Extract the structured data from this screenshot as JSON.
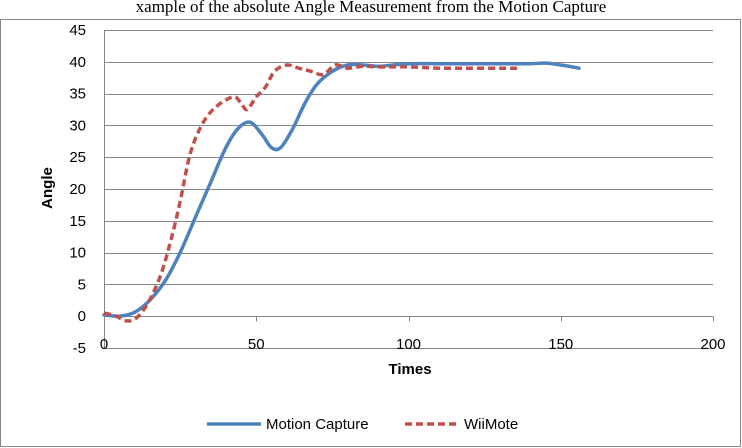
{
  "caption": "xample of the absolute Angle Measurement from the Motion Capture",
  "chart_data": {
    "type": "line",
    "title": "",
    "xlabel": "Times",
    "ylabel": "Angle",
    "xlim": [
      0,
      200
    ],
    "ylim": [
      -5,
      45
    ],
    "x_ticks": [
      0,
      50,
      100,
      150,
      200
    ],
    "y_ticks": [
      -5,
      0,
      5,
      10,
      15,
      20,
      25,
      30,
      35,
      40,
      45
    ],
    "grid": "horizontal",
    "legend_position": "bottom",
    "series": [
      {
        "name": "Motion Capture",
        "color": "#4F81BD",
        "style": "solid",
        "points": [
          [
            0,
            0.2
          ],
          [
            5,
            0
          ],
          [
            10,
            0.6
          ],
          [
            15,
            2.5
          ],
          [
            20,
            5.5
          ],
          [
            25,
            10
          ],
          [
            30,
            15.5
          ],
          [
            35,
            21
          ],
          [
            40,
            26.5
          ],
          [
            44,
            29.5
          ],
          [
            48,
            30.5
          ],
          [
            52,
            28.5
          ],
          [
            55,
            26.5
          ],
          [
            58,
            26.5
          ],
          [
            62,
            29.5
          ],
          [
            66,
            33.5
          ],
          [
            70,
            36.5
          ],
          [
            75,
            38.5
          ],
          [
            80,
            39.5
          ],
          [
            85,
            39.5
          ],
          [
            90,
            39.3
          ],
          [
            95,
            39.5
          ],
          [
            100,
            39.7
          ],
          [
            110,
            39.7
          ],
          [
            120,
            39.7
          ],
          [
            130,
            39.7
          ],
          [
            140,
            39.7
          ],
          [
            145,
            39.8
          ],
          [
            150,
            39.5
          ],
          [
            156,
            39
          ]
        ]
      },
      {
        "name": "WiiMote",
        "color": "#C0504D",
        "style": "dashed",
        "points": [
          [
            0,
            0.5
          ],
          [
            4,
            0
          ],
          [
            7,
            -0.7
          ],
          [
            10,
            -0.5
          ],
          [
            13,
            1
          ],
          [
            16,
            3.5
          ],
          [
            19,
            7
          ],
          [
            22,
            12
          ],
          [
            25,
            18
          ],
          [
            28,
            25
          ],
          [
            31,
            29
          ],
          [
            34,
            31.5
          ],
          [
            37,
            33
          ],
          [
            40,
            34
          ],
          [
            43,
            34.5
          ],
          [
            45,
            33.5
          ],
          [
            47,
            32.5
          ],
          [
            50,
            34.5
          ],
          [
            53,
            36
          ],
          [
            56,
            38.5
          ],
          [
            60,
            39.5
          ],
          [
            64,
            39
          ],
          [
            68,
            38.5
          ],
          [
            72,
            38
          ],
          [
            76,
            39.5
          ],
          [
            80,
            39
          ],
          [
            85,
            39.3
          ],
          [
            90,
            39.2
          ],
          [
            95,
            39.2
          ],
          [
            100,
            39.2
          ],
          [
            110,
            39
          ],
          [
            120,
            39
          ],
          [
            130,
            39
          ],
          [
            137,
            39
          ]
        ]
      }
    ]
  }
}
